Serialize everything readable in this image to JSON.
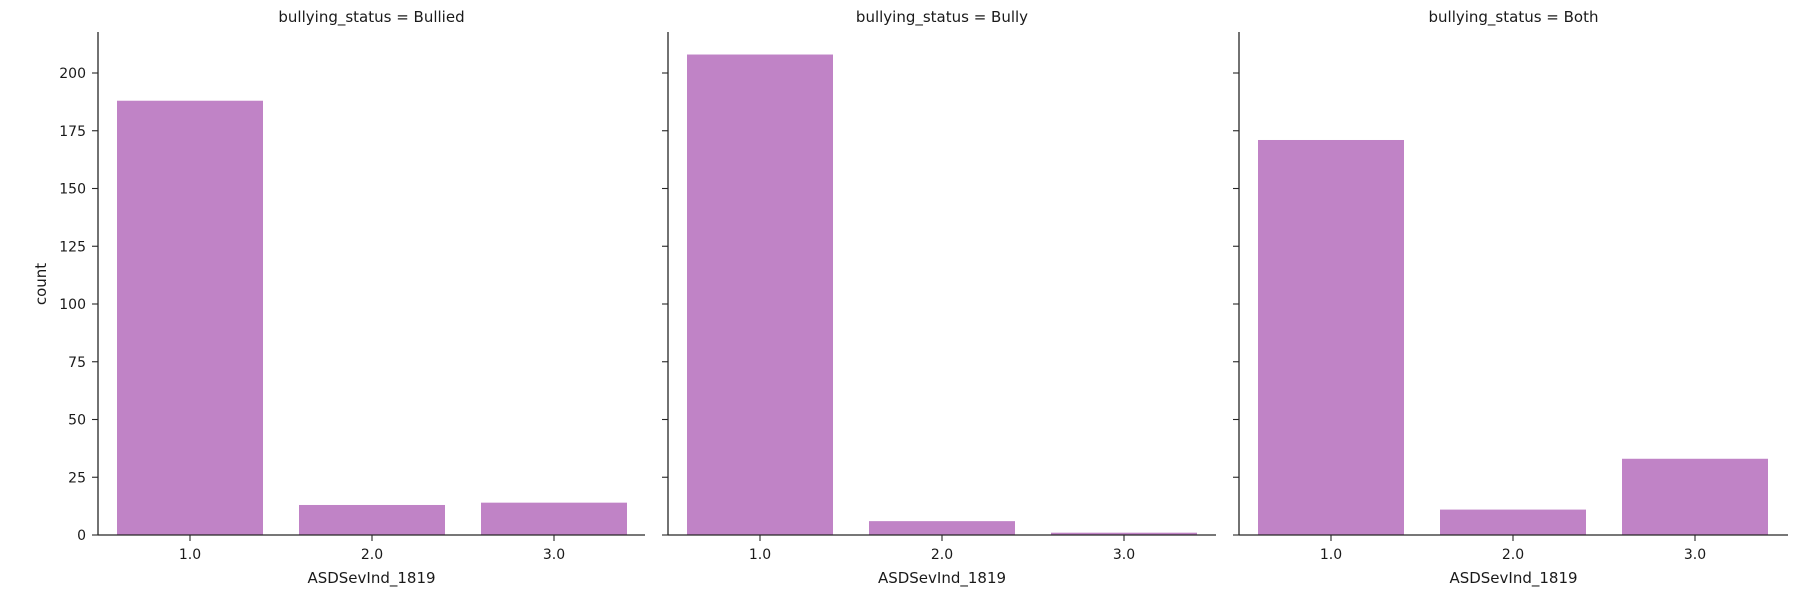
{
  "chart_data": [
    {
      "type": "bar",
      "title": "bullying_status = Bullied",
      "xlabel": "ASDSevInd_1819",
      "ylabel": "count",
      "categories": [
        "1.0",
        "2.0",
        "3.0"
      ],
      "values": [
        188,
        13,
        14
      ],
      "ylim": [
        0,
        218
      ],
      "yticks": [
        "0",
        "25",
        "50",
        "75",
        "100",
        "125",
        "150",
        "175",
        "200"
      ],
      "grid": false,
      "color": "#c083c6"
    },
    {
      "type": "bar",
      "title": "bullying_status = Bully",
      "xlabel": "ASDSevInd_1819",
      "ylabel": "",
      "categories": [
        "1.0",
        "2.0",
        "3.0"
      ],
      "values": [
        208,
        6,
        1
      ],
      "ylim": [
        0,
        218
      ],
      "grid": false,
      "color": "#c083c6"
    },
    {
      "type": "bar",
      "title": "bullying_status = Both",
      "xlabel": "ASDSevInd_1819",
      "ylabel": "",
      "categories": [
        "1.0",
        "2.0",
        "3.0"
      ],
      "values": [
        171,
        11,
        33
      ],
      "ylim": [
        0,
        218
      ],
      "grid": false,
      "color": "#c083c6"
    }
  ]
}
